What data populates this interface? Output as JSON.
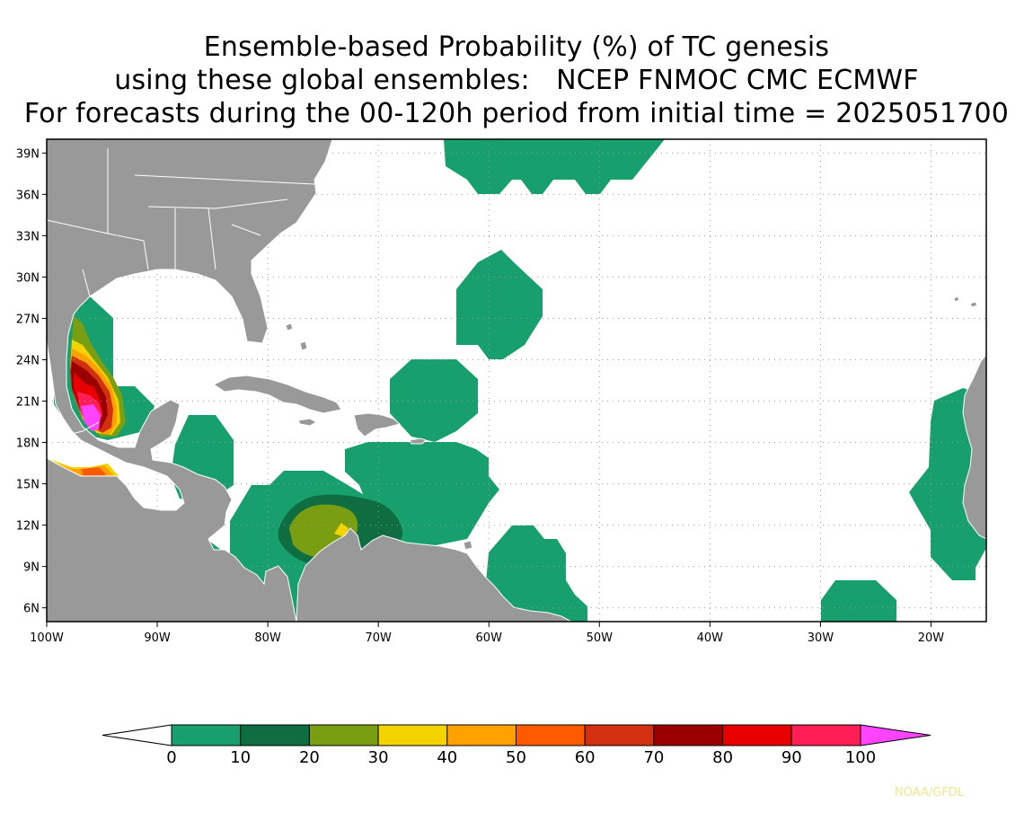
{
  "title": {
    "line1": "Ensemble-based Probability (%) of TC genesis",
    "line2": "using these global ensembles:   NCEP FNMOC CMC ECMWF",
    "line3": "For forecasts during the 00-120h period from initial time = 2025051700"
  },
  "map": {
    "lon_range": [
      -100,
      -15
    ],
    "lat_range": [
      5,
      40
    ],
    "lon_ticks": [
      {
        "lon": -100,
        "label": "100W"
      },
      {
        "lon": -90,
        "label": "90W"
      },
      {
        "lon": -80,
        "label": "80W"
      },
      {
        "lon": -70,
        "label": "70W"
      },
      {
        "lon": -60,
        "label": "60W"
      },
      {
        "lon": -50,
        "label": "50W"
      },
      {
        "lon": -40,
        "label": "40W"
      },
      {
        "lon": -30,
        "label": "30W"
      },
      {
        "lon": -20,
        "label": "20W"
      }
    ],
    "lat_ticks": [
      {
        "lat": 6,
        "label": "6N"
      },
      {
        "lat": 9,
        "label": "9N"
      },
      {
        "lat": 12,
        "label": "12N"
      },
      {
        "lat": 15,
        "label": "15N"
      },
      {
        "lat": 18,
        "label": "18N"
      },
      {
        "lat": 21,
        "label": "21N"
      },
      {
        "lat": 24,
        "label": "24N"
      },
      {
        "lat": 27,
        "label": "27N"
      },
      {
        "lat": 30,
        "label": "30N"
      },
      {
        "lat": 33,
        "label": "33N"
      },
      {
        "lat": 36,
        "label": "36N"
      },
      {
        "lat": 39,
        "label": "39N"
      }
    ],
    "gridlines": "dotted",
    "land_color": "#999999",
    "ocean_color": "#ffffff"
  },
  "colorbar": {
    "labels": [
      "0",
      "10",
      "20",
      "30",
      "40",
      "50",
      "60",
      "70",
      "80",
      "90",
      "100"
    ],
    "colors": [
      "#17a06d",
      "#0e6e42",
      "#7a9e12",
      "#f4d400",
      "#ffa200",
      "#ff5a00",
      "#d23010",
      "#9a0000",
      "#e80000",
      "#ff1f55"
    ],
    "under_color": "#ffffff",
    "over_color": "#ff44ff"
  },
  "credit": "NOAA/GFDL"
}
